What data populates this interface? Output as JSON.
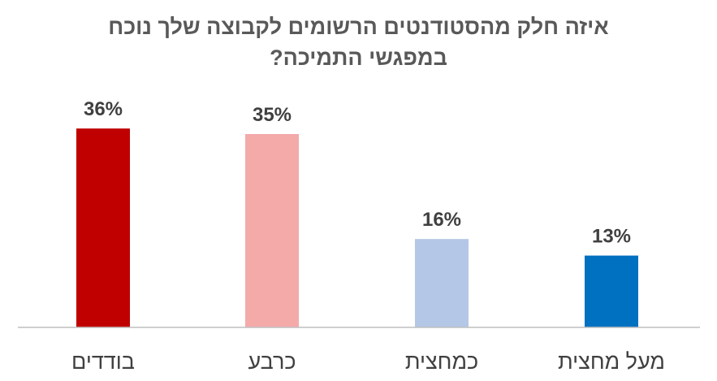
{
  "chart_data": {
    "type": "bar",
    "title_lines": [
      "איזה חלק מהסטודנטים הרשומים לקבוצה שלך נוכח",
      "במפגשי התמיכה?"
    ],
    "categories": [
      "בודדים",
      "כרבע",
      "כמחצית",
      "מעל מחצית"
    ],
    "values": [
      36,
      35,
      16,
      13
    ],
    "value_labels": [
      "36%",
      "35%",
      "16%",
      "13%"
    ],
    "colors": [
      "#C00000",
      "#F4AAA9",
      "#B4C7E7",
      "#0070C0"
    ],
    "ylim": [
      0,
      40
    ],
    "grid": false,
    "legend": "none"
  }
}
